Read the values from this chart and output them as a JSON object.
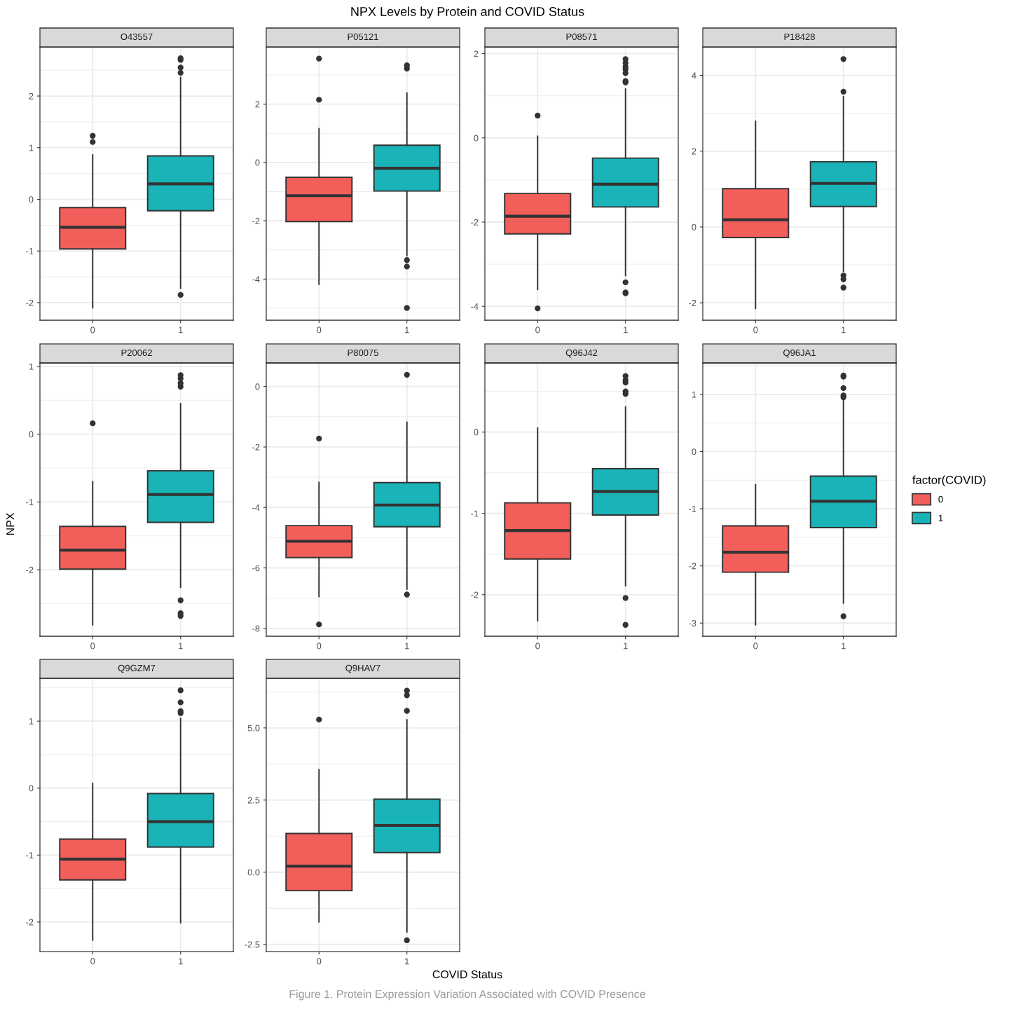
{
  "chart_data": [
    {
      "type": "other",
      "title": "NPX Levels by Protein and COVID Status",
      "xlabel": "COVID Status",
      "ylabel": "NPX",
      "annotations": [
        "Figure 1. Protein Expression Variation Associated with COVID Presence"
      ]
    },
    {
      "type": "box",
      "title": "O43557",
      "categories": [
        "0",
        "1"
      ],
      "colors": [
        "#F25F5A",
        "#1AB3B7"
      ],
      "ylim": [
        -2.34,
        2.95
      ],
      "yticks": [
        -2,
        -1,
        0,
        1,
        2
      ],
      "grid": true,
      "boxes": [
        {
          "low": -2.1,
          "q1": -0.96,
          "median": -0.54,
          "q3": -0.16,
          "high": 0.86,
          "outliers": [
            1.11,
            1.23
          ]
        },
        {
          "low": -1.72,
          "q1": -0.22,
          "median": 0.3,
          "q3": 0.84,
          "high": 2.36,
          "outliers": [
            -1.85,
            2.45,
            2.55,
            2.7,
            2.73
          ]
        }
      ]
    },
    {
      "type": "box",
      "title": "P05121",
      "categories": [
        "0",
        "1"
      ],
      "colors": [
        "#F25F5A",
        "#1AB3B7"
      ],
      "ylim": [
        -5.41,
        3.96
      ],
      "yticks": [
        -4,
        -2,
        0,
        2
      ],
      "grid": true,
      "boxes": [
        {
          "low": -4.18,
          "q1": -2.03,
          "median": -1.14,
          "q3": -0.51,
          "high": 1.16,
          "outliers": [
            2.15,
            3.56
          ]
        },
        {
          "low": -3.2,
          "q1": -0.98,
          "median": -0.2,
          "q3": 0.59,
          "high": 2.38,
          "outliers": [
            -4.99,
            -3.57,
            -3.35,
            3.22,
            3.33
          ]
        }
      ]
    },
    {
      "type": "box",
      "title": "P08571",
      "categories": [
        "0",
        "1"
      ],
      "colors": [
        "#F25F5A",
        "#1AB3B7"
      ],
      "ylim": [
        -4.33,
        2.16
      ],
      "yticks": [
        -4,
        -2,
        0,
        2
      ],
      "grid": true,
      "boxes": [
        {
          "low": -3.6,
          "q1": -2.28,
          "median": -1.86,
          "q3": -1.32,
          "high": 0.04,
          "outliers": [
            -4.05,
            0.53
          ]
        },
        {
          "low": -3.27,
          "q1": -1.64,
          "median": -1.1,
          "q3": -0.48,
          "high": 1.16,
          "outliers": [
            -3.69,
            -3.67,
            -3.43,
            1.32,
            1.35,
            1.54,
            1.63,
            1.69,
            1.78,
            1.87
          ]
        }
      ]
    },
    {
      "type": "box",
      "title": "P18428",
      "categories": [
        "0",
        "1"
      ],
      "colors": [
        "#F25F5A",
        "#1AB3B7"
      ],
      "ylim": [
        -2.46,
        4.75
      ],
      "yticks": [
        -2,
        0,
        2,
        4
      ],
      "grid": true,
      "boxes": [
        {
          "low": -2.15,
          "q1": -0.28,
          "median": 0.19,
          "q3": 1.01,
          "high": 2.79
        },
        {
          "low": -1.17,
          "q1": 0.54,
          "median": 1.15,
          "q3": 1.72,
          "high": 3.44,
          "outliers": [
            -1.6,
            -1.38,
            -1.28,
            3.57,
            4.43
          ]
        }
      ]
    },
    {
      "type": "box",
      "title": "P20062",
      "categories": [
        "0",
        "1"
      ],
      "colors": [
        "#F25F5A",
        "#1AB3B7"
      ],
      "ylim": [
        -2.98,
        1.05
      ],
      "yticks": [
        -2,
        -1,
        0,
        1
      ],
      "grid": true,
      "boxes": [
        {
          "low": -2.81,
          "q1": -1.99,
          "median": -1.71,
          "q3": -1.36,
          "high": -0.7,
          "outliers": [
            0.16
          ]
        },
        {
          "low": -2.26,
          "q1": -1.3,
          "median": -0.89,
          "q3": -0.54,
          "high": 0.45,
          "outliers": [
            -2.68,
            -2.64,
            -2.45,
            0.7,
            0.75,
            0.82,
            0.87
          ]
        }
      ]
    },
    {
      "type": "box",
      "title": "P80075",
      "categories": [
        "0",
        "1"
      ],
      "colors": [
        "#F25F5A",
        "#1AB3B7"
      ],
      "ylim": [
        -8.26,
        0.78
      ],
      "yticks": [
        -8,
        -6,
        -4,
        -2,
        0
      ],
      "grid": true,
      "boxes": [
        {
          "low": -6.95,
          "q1": -5.66,
          "median": -5.12,
          "q3": -4.6,
          "high": -3.17,
          "outliers": [
            -7.87,
            -1.72
          ]
        },
        {
          "low": -6.7,
          "q1": -4.64,
          "median": -3.92,
          "q3": -3.18,
          "high": -1.18,
          "outliers": [
            -6.88,
            0.39
          ]
        }
      ]
    },
    {
      "type": "box",
      "title": "Q96J42",
      "categories": [
        "0",
        "1"
      ],
      "colors": [
        "#F25F5A",
        "#1AB3B7"
      ],
      "ylim": [
        -2.51,
        0.85
      ],
      "yticks": [
        -2,
        -1,
        0
      ],
      "grid": true,
      "boxes": [
        {
          "low": -2.32,
          "q1": -1.56,
          "median": -1.21,
          "q3": -0.87,
          "high": 0.05
        },
        {
          "low": -1.89,
          "q1": -1.02,
          "median": -0.73,
          "q3": -0.45,
          "high": 0.31,
          "outliers": [
            -2.37,
            -2.04,
            0.47,
            0.5,
            0.61,
            0.64,
            0.69
          ]
        }
      ]
    },
    {
      "type": "box",
      "title": "Q96JA1",
      "categories": [
        "0",
        "1"
      ],
      "ylim": [
        -3.23,
        1.55
      ],
      "yticks": [
        -3,
        -2,
        -1,
        0,
        1
      ],
      "grid": true,
      "legend": "right",
      "legend_title": "factor(COVID)",
      "series": [
        {
          "name": "0",
          "color": "#F25F5A",
          "boxes": [
            {
              "low": -3.03,
              "q1": -2.11,
              "median": -1.76,
              "q3": -1.3,
              "high": -0.58
            },
            null
          ]
        },
        {
          "name": "1",
          "color": "#1AB3B7",
          "boxes": [
            null,
            {
              "low": -2.65,
              "q1": -1.33,
              "median": -0.87,
              "q3": -0.43,
              "high": 0.92,
              "outliers": [
                -2.88,
                0.95,
                0.98,
                1.11,
                1.31,
                1.33
              ]
            }
          ]
        }
      ]
    },
    {
      "type": "box",
      "title": "Q9GZM7",
      "categories": [
        "0",
        "1"
      ],
      "colors": [
        "#F25F5A",
        "#1AB3B7"
      ],
      "ylim": [
        -2.44,
        1.64
      ],
      "yticks": [
        -2,
        -1,
        0,
        1
      ],
      "grid": true,
      "boxes": [
        {
          "low": -2.27,
          "q1": -1.37,
          "median": -1.06,
          "q3": -0.76,
          "high": 0.07
        },
        {
          "low": -2.01,
          "q1": -0.88,
          "median": -0.5,
          "q3": -0.08,
          "high": 1.04,
          "outliers": [
            1.12,
            1.15,
            1.28,
            1.46
          ]
        }
      ]
    },
    {
      "type": "box",
      "title": "Q9HAV7",
      "categories": [
        "0",
        "1"
      ],
      "colors": [
        "#F25F5A",
        "#1AB3B7"
      ],
      "ylim": [
        -2.75,
        6.72
      ],
      "yticks": [
        -2.5,
        {
          "value": 0,
          "label": "0.0"
        },
        2.5,
        {
          "value": 5,
          "label": "5.0"
        }
      ],
      "grid": true,
      "boxes": [
        {
          "low": -1.72,
          "q1": -0.64,
          "median": 0.21,
          "q3": 1.34,
          "high": 3.55,
          "outliers": [
            5.29
          ]
        },
        {
          "low": -2.07,
          "q1": 0.68,
          "median": 1.62,
          "q3": 2.53,
          "high": 5.28,
          "outliers": [
            -2.36,
            5.59,
            6.13,
            6.29
          ]
        }
      ]
    }
  ]
}
